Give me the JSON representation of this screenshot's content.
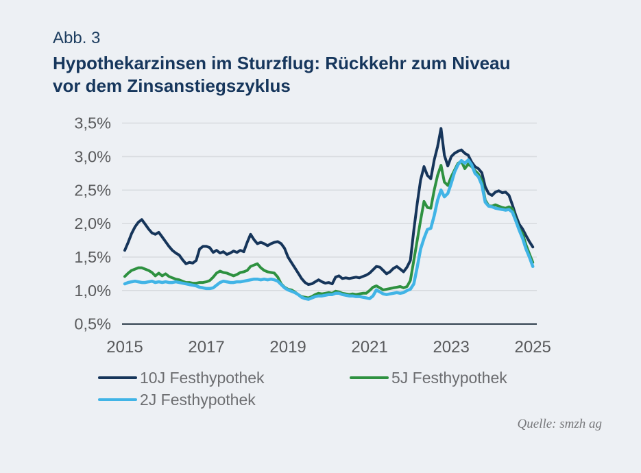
{
  "figure": {
    "label": "Abb. 3",
    "title_line1": "Hypothekarzinsen im Sturzflug: Rückkehr zum Niveau",
    "title_line2": "vor dem Zinsanstiegszyklus",
    "source": "Quelle: smzh ag"
  },
  "colors": {
    "background": "#edf0f4",
    "title": "#16365c",
    "gridline": "#d8dbdf",
    "axis_line": "#20303f",
    "tick_text": "#595a5c",
    "legend_text": "#6c6d70"
  },
  "chart_data": {
    "type": "line",
    "title": "Hypothekarzinsen im Sturzflug: Rückkehr zum Niveau vor dem Zinsanstiegszyklus",
    "xlabel": "",
    "ylabel": "",
    "x_start": "2015-01",
    "frequency": "monthly",
    "xlim": [
      2015.0,
      2025.1
    ],
    "ylim": [
      0.5,
      3.5
    ],
    "grid": true,
    "legend_position": "bottom",
    "x_tick_years": [
      2015,
      2017,
      2019,
      2021,
      2023,
      2025
    ],
    "x_tick_labels": [
      "2015",
      "2017",
      "2019",
      "2021",
      "2023",
      "2025"
    ],
    "y_ticks": [
      0.5,
      1.0,
      1.5,
      2.0,
      2.5,
      3.0,
      3.5
    ],
    "y_tick_labels": [
      "0,5%",
      "1,0%",
      "1,5%",
      "2,0%",
      "2,5%",
      "3,0%",
      "3,5%"
    ],
    "series": [
      {
        "name": "10J Festhypothek",
        "color": "#16355a",
        "stroke_width": 4,
        "values": [
          1.6,
          1.72,
          1.85,
          1.95,
          2.02,
          2.06,
          1.99,
          1.92,
          1.86,
          1.84,
          1.87,
          1.8,
          1.73,
          1.66,
          1.6,
          1.56,
          1.53,
          1.46,
          1.4,
          1.42,
          1.41,
          1.45,
          1.62,
          1.66,
          1.66,
          1.64,
          1.57,
          1.6,
          1.56,
          1.58,
          1.54,
          1.56,
          1.59,
          1.57,
          1.6,
          1.58,
          1.72,
          1.84,
          1.76,
          1.7,
          1.72,
          1.7,
          1.67,
          1.7,
          1.72,
          1.73,
          1.7,
          1.63,
          1.5,
          1.42,
          1.34,
          1.26,
          1.18,
          1.12,
          1.09,
          1.1,
          1.13,
          1.16,
          1.13,
          1.11,
          1.12,
          1.1,
          1.2,
          1.22,
          1.18,
          1.19,
          1.18,
          1.19,
          1.2,
          1.19,
          1.21,
          1.23,
          1.26,
          1.31,
          1.36,
          1.35,
          1.3,
          1.25,
          1.28,
          1.33,
          1.36,
          1.32,
          1.28,
          1.35,
          1.45,
          1.9,
          2.3,
          2.65,
          2.85,
          2.72,
          2.67,
          2.95,
          3.15,
          3.42,
          3.02,
          2.86,
          3.0,
          3.05,
          3.08,
          3.1,
          3.05,
          3.02,
          2.92,
          2.85,
          2.82,
          2.76,
          2.55,
          2.45,
          2.42,
          2.47,
          2.49,
          2.46,
          2.47,
          2.42,
          2.28,
          2.12,
          1.99,
          1.92,
          1.82,
          1.73,
          1.65
        ]
      },
      {
        "name": "5J Festhypothek",
        "color": "#2e9140",
        "stroke_width": 4,
        "values": [
          1.21,
          1.26,
          1.3,
          1.32,
          1.34,
          1.34,
          1.32,
          1.3,
          1.27,
          1.22,
          1.26,
          1.22,
          1.25,
          1.21,
          1.19,
          1.17,
          1.16,
          1.14,
          1.12,
          1.12,
          1.11,
          1.11,
          1.12,
          1.12,
          1.13,
          1.15,
          1.2,
          1.26,
          1.29,
          1.27,
          1.26,
          1.24,
          1.22,
          1.24,
          1.27,
          1.28,
          1.3,
          1.36,
          1.38,
          1.4,
          1.34,
          1.3,
          1.28,
          1.27,
          1.26,
          1.2,
          1.1,
          1.05,
          1.02,
          1.01,
          0.98,
          0.94,
          0.91,
          0.9,
          0.89,
          0.91,
          0.94,
          0.96,
          0.95,
          0.96,
          0.97,
          0.96,
          0.99,
          0.98,
          0.96,
          0.95,
          0.94,
          0.95,
          0.94,
          0.95,
          0.96,
          0.96,
          1.0,
          1.05,
          1.07,
          1.04,
          1.01,
          1.02,
          1.03,
          1.04,
          1.05,
          1.06,
          1.04,
          1.06,
          1.15,
          1.45,
          1.75,
          2.05,
          2.33,
          2.24,
          2.23,
          2.5,
          2.72,
          2.87,
          2.62,
          2.57,
          2.7,
          2.8,
          2.9,
          2.93,
          2.82,
          2.89,
          2.85,
          2.79,
          2.74,
          2.64,
          2.35,
          2.27,
          2.26,
          2.28,
          2.26,
          2.24,
          2.23,
          2.25,
          2.22,
          2.06,
          1.92,
          1.85,
          1.68,
          1.55,
          1.42
        ]
      },
      {
        "name": "2J Festhypothek",
        "color": "#41b4e6",
        "stroke_width": 4.5,
        "values": [
          1.1,
          1.12,
          1.13,
          1.14,
          1.13,
          1.12,
          1.12,
          1.13,
          1.14,
          1.12,
          1.13,
          1.12,
          1.13,
          1.12,
          1.12,
          1.13,
          1.12,
          1.11,
          1.1,
          1.09,
          1.08,
          1.07,
          1.05,
          1.04,
          1.03,
          1.03,
          1.04,
          1.08,
          1.12,
          1.14,
          1.13,
          1.12,
          1.12,
          1.13,
          1.13,
          1.14,
          1.15,
          1.16,
          1.17,
          1.17,
          1.16,
          1.17,
          1.16,
          1.17,
          1.16,
          1.14,
          1.09,
          1.04,
          1.01,
          0.99,
          0.97,
          0.94,
          0.9,
          0.88,
          0.87,
          0.89,
          0.91,
          0.92,
          0.92,
          0.93,
          0.94,
          0.94,
          0.96,
          0.96,
          0.94,
          0.93,
          0.92,
          0.92,
          0.91,
          0.91,
          0.9,
          0.89,
          0.88,
          0.92,
          1.01,
          0.98,
          0.95,
          0.94,
          0.95,
          0.96,
          0.97,
          0.96,
          0.97,
          1.0,
          1.02,
          1.1,
          1.35,
          1.62,
          1.78,
          1.91,
          1.93,
          2.12,
          2.35,
          2.5,
          2.4,
          2.45,
          2.6,
          2.77,
          2.88,
          2.94,
          2.9,
          2.95,
          2.88,
          2.75,
          2.7,
          2.58,
          2.32,
          2.26,
          2.25,
          2.23,
          2.22,
          2.21,
          2.2,
          2.21,
          2.17,
          2.04,
          1.9,
          1.78,
          1.62,
          1.5,
          1.36
        ]
      }
    ]
  }
}
